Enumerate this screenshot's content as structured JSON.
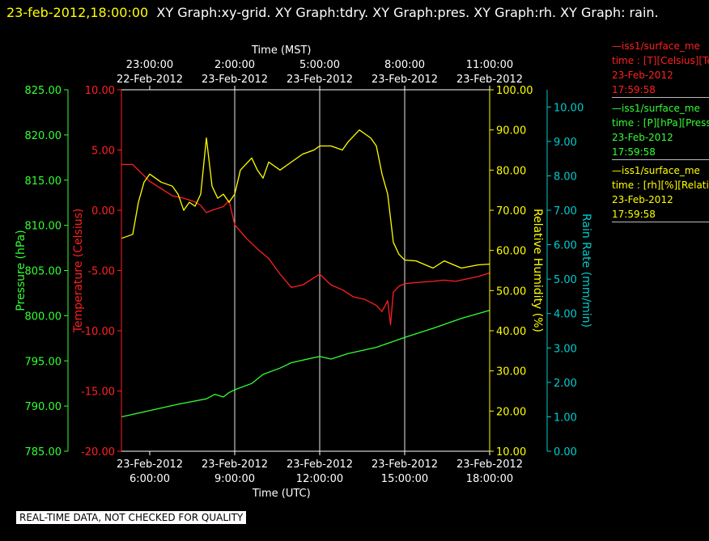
{
  "header": {
    "timestamp": "23-feb-2012,18:00:00",
    "text": "XY Graph:xy-grid.  XY Graph:tdry.  XY Graph:pres.  XY Graph:rh.  XY Graph: rain."
  },
  "legend": [
    {
      "line1": "—iss1/surface_me",
      "line2": "time : [T][Celsius][Tem",
      "line3": "23-Feb-2012",
      "line4": "17:59:58",
      "color": "#ff2020"
    },
    {
      "line1": "—iss1/surface_me",
      "line2": "time : [P][hPa][Pressure",
      "line3": "23-Feb-2012",
      "line4": "17:59:58",
      "color": "#33ff33"
    },
    {
      "line1": "—iss1/surface_me",
      "line2": "time : [rh][%][Relative",
      "line3": "23-Feb-2012",
      "line4": "17:59:58",
      "color": "#ffff00"
    }
  ],
  "footer": "REAL-TIME DATA, NOT CHECKED FOR QUALITY",
  "chart_data": {
    "type": "line",
    "title": "",
    "x_top_label": "Time (MST)",
    "x_bottom_label": "Time (UTC)",
    "x_range_utc_hours": [
      5.0,
      18.0
    ],
    "top_ticks": [
      {
        "hour": 6,
        "l1": "23:00:00",
        "l2": "22-Feb-2012"
      },
      {
        "hour": 9,
        "l1": "2:00:00",
        "l2": "23-Feb-2012"
      },
      {
        "hour": 12,
        "l1": "5:00:00",
        "l2": "23-Feb-2012"
      },
      {
        "hour": 15,
        "l1": "8:00:00",
        "l2": "23-Feb-2012"
      },
      {
        "hour": 18,
        "l1": "11:00:00",
        "l2": "23-Feb-2012"
      }
    ],
    "bottom_ticks": [
      {
        "hour": 6,
        "l1": "23-Feb-2012",
        "l2": "6:00:00"
      },
      {
        "hour": 9,
        "l1": "23-Feb-2012",
        "l2": "9:00:00"
      },
      {
        "hour": 12,
        "l1": "23-Feb-2012",
        "l2": "12:00:00"
      },
      {
        "hour": 15,
        "l1": "23-Feb-2012",
        "l2": "15:00:00"
      },
      {
        "hour": 18,
        "l1": "23-Feb-2012",
        "l2": "18:00:00"
      }
    ],
    "grid_hours": [
      9,
      12,
      15
    ],
    "axes": {
      "pressure": {
        "label": "Pressure (hPa)",
        "range": [
          785,
          825
        ],
        "ticks": [
          "825.00",
          "820.00",
          "815.00",
          "810.00",
          "805.00",
          "800.00",
          "795.00",
          "790.00",
          "785.00"
        ],
        "color": "#33ff33"
      },
      "temperature": {
        "label": "Temperature (Celsius)",
        "range": [
          -20,
          10
        ],
        "ticks": [
          "10.00",
          "5.00",
          "0.00",
          "-5.00",
          "-10.00",
          "-15.00",
          "-20.00"
        ],
        "color": "#ff2020"
      },
      "rh": {
        "label": "Relative Humidity (%)",
        "range": [
          10,
          100
        ],
        "ticks": [
          "100.00",
          "90.00",
          "80.00",
          "70.00",
          "60.00",
          "50.00",
          "40.00",
          "30.00",
          "20.00",
          "10.00"
        ],
        "color": "#ffff00"
      },
      "rain": {
        "label": "Rain Rate (mm/min)",
        "range": [
          0,
          10.5
        ],
        "ticks": [
          "10.00",
          "9.00",
          "8.00",
          "7.00",
          "6.00",
          "5.00",
          "4.00",
          "3.00",
          "2.00",
          "1.00",
          "0.00"
        ],
        "color": "#00cccc"
      }
    },
    "series": [
      {
        "name": "Temperature",
        "axis": "temperature",
        "color": "#ff2020",
        "x": [
          5.0,
          5.4,
          6.0,
          6.4,
          6.8,
          7.2,
          7.6,
          7.8,
          8.0,
          8.2,
          8.6,
          8.8,
          9.0,
          9.4,
          9.8,
          10.2,
          10.6,
          11.0,
          11.4,
          11.6,
          12.0,
          12.4,
          12.8,
          13.2,
          13.6,
          14.0,
          14.2,
          14.4,
          14.5,
          14.6,
          14.8,
          15.0,
          15.4,
          16.0,
          16.4,
          16.8,
          17.2,
          17.6,
          18.0
        ],
        "y": [
          3.8,
          3.8,
          2.4,
          1.8,
          1.2,
          1.0,
          0.7,
          0.4,
          -0.2,
          0.0,
          0.3,
          0.8,
          -1.2,
          -2.3,
          -3.2,
          -4.0,
          -5.3,
          -6.4,
          -6.2,
          -5.9,
          -5.3,
          -6.2,
          -6.6,
          -7.2,
          -7.4,
          -7.9,
          -8.4,
          -7.5,
          -9.5,
          -6.8,
          -6.3,
          -6.1,
          -6.0,
          -5.9,
          -5.8,
          -5.9,
          -5.7,
          -5.5,
          -5.2
        ]
      },
      {
        "name": "Pressure",
        "axis": "pressure",
        "color": "#33ff33",
        "x": [
          5.0,
          6.0,
          7.0,
          8.0,
          8.3,
          8.6,
          8.8,
          9.0,
          9.6,
          10.0,
          10.6,
          11.0,
          12.0,
          12.4,
          13.0,
          14.0,
          15.0,
          16.0,
          17.0,
          18.0
        ],
        "y": [
          788.8,
          789.5,
          790.2,
          790.8,
          791.3,
          791.0,
          791.5,
          791.8,
          792.5,
          793.5,
          794.2,
          794.8,
          795.5,
          795.2,
          795.8,
          796.5,
          797.6,
          798.6,
          799.7,
          800.6
        ]
      },
      {
        "name": "Relative Humidity",
        "axis": "rh",
        "color": "#ffff00",
        "x": [
          5.0,
          5.4,
          5.6,
          5.8,
          6.0,
          6.4,
          6.8,
          7.0,
          7.2,
          7.4,
          7.6,
          7.8,
          8.0,
          8.2,
          8.4,
          8.6,
          8.8,
          9.0,
          9.2,
          9.6,
          9.8,
          10.0,
          10.2,
          10.6,
          11.0,
          11.4,
          11.8,
          12.0,
          12.4,
          12.8,
          13.0,
          13.4,
          13.6,
          13.8,
          14.0,
          14.2,
          14.4,
          14.6,
          14.8,
          15.0,
          15.4,
          16.0,
          16.4,
          17.0,
          17.6,
          18.0
        ],
        "y": [
          63,
          64,
          72,
          77,
          79,
          77,
          76,
          74,
          70,
          72,
          71,
          74,
          88,
          76,
          73,
          74,
          72,
          74,
          80,
          83,
          80,
          78,
          82,
          80,
          82,
          84,
          85,
          86,
          86,
          85,
          87,
          90,
          89,
          88,
          86,
          79,
          74,
          62,
          59,
          58,
          57,
          56,
          57,
          56,
          56,
          57
        ]
      }
    ]
  }
}
